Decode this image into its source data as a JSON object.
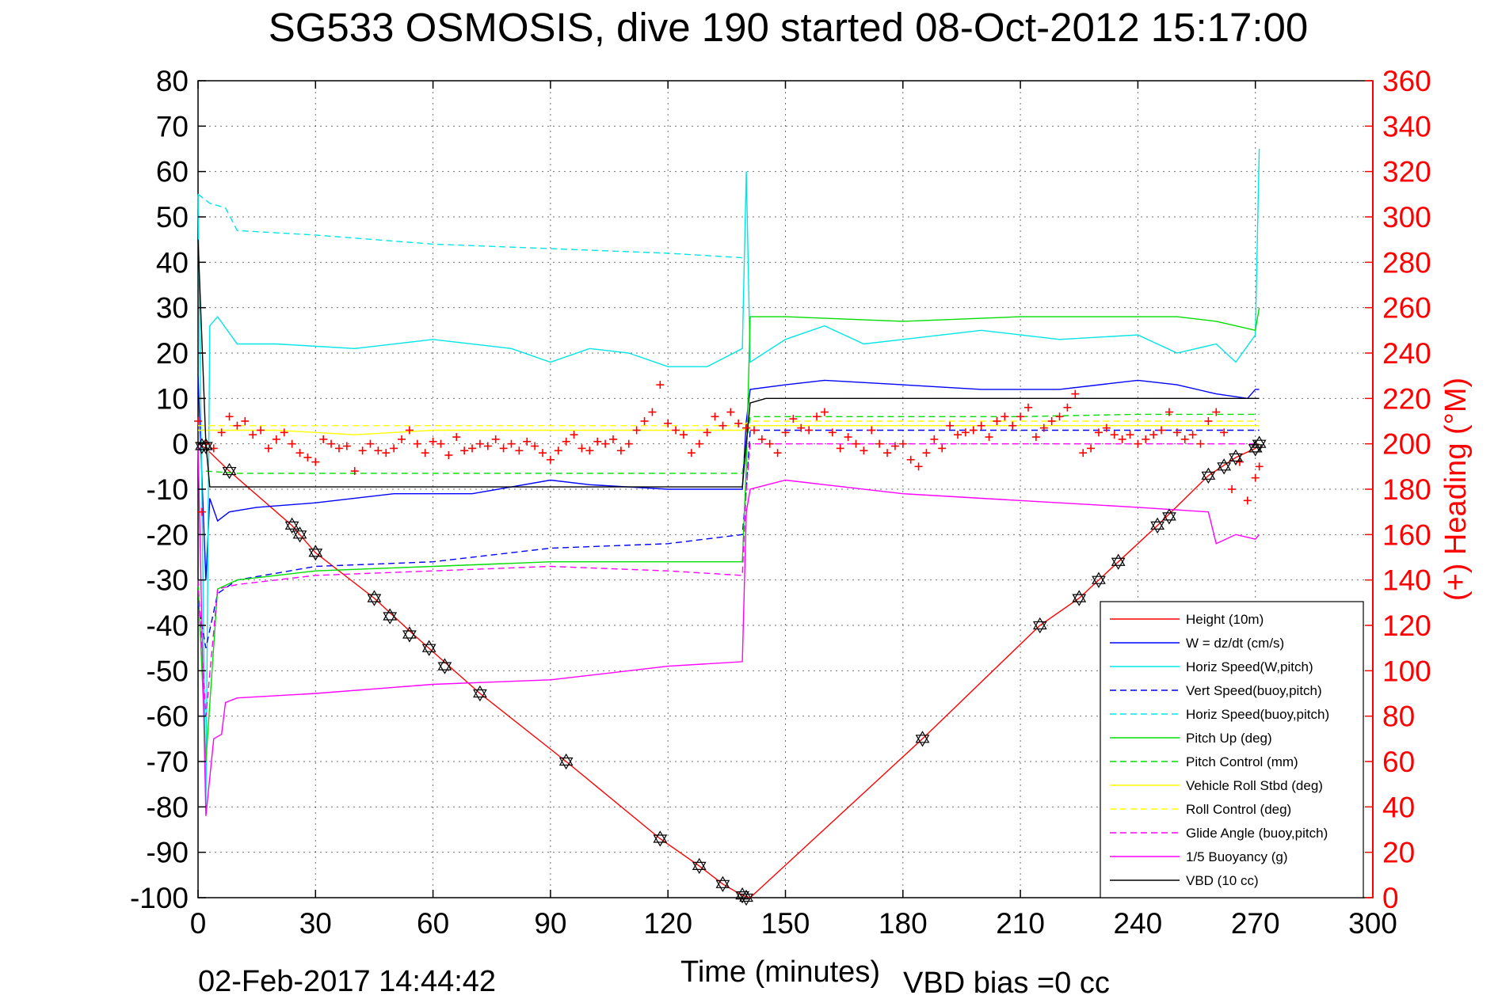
{
  "chart_data": {
    "type": "line",
    "title": "SG533 OSMOSIS, dive 190 started 08-Oct-2012 15:17:00",
    "xlabel": "Time (minutes)",
    "ylabel_right": "(+) Heading (°M)",
    "footer_date": "02-Feb-2017 14:44:42",
    "footer_bias": "VBD bias =0 cc",
    "xlim": [
      0,
      300
    ],
    "ylim": [
      -100,
      80
    ],
    "ylim_right": [
      0,
      360
    ],
    "x_ticks": [
      0,
      30,
      60,
      90,
      120,
      150,
      180,
      210,
      240,
      270,
      300
    ],
    "x_tick_labels": [
      "0",
      "30",
      "60",
      "90",
      "120",
      "150",
      "180",
      "210",
      "240",
      "270",
      "300"
    ],
    "y_ticks": [
      -100,
      -90,
      -80,
      -70,
      -60,
      -50,
      -40,
      -30,
      -20,
      -10,
      0,
      10,
      20,
      30,
      40,
      50,
      60,
      70,
      80
    ],
    "y_tick_labels": [
      "-100",
      "-90",
      "-80",
      "-70",
      "-60",
      "-50",
      "-40",
      "-30",
      "-20",
      "-10",
      "0",
      "10",
      "20",
      "30",
      "40",
      "50",
      "60",
      "70",
      "80"
    ],
    "y_right_ticks": [
      0,
      20,
      40,
      60,
      80,
      100,
      120,
      140,
      160,
      180,
      200,
      220,
      240,
      260,
      280,
      300,
      320,
      340,
      360
    ],
    "y_right_tick_labels": [
      "0",
      "20",
      "40",
      "60",
      "80",
      "100",
      "120",
      "140",
      "160",
      "180",
      "200",
      "220",
      "240",
      "260",
      "280",
      "300",
      "320",
      "340",
      "360"
    ],
    "grid": true,
    "legend_position": "bottom-right",
    "series": [
      {
        "name": "Height (10m)",
        "color": "#ff0000",
        "style": "solid",
        "x": [
          0,
          2,
          8,
          24,
          30,
          45,
          55,
          72,
          94,
          118,
          128,
          134,
          139,
          141,
          185,
          215,
          225,
          235,
          245,
          258,
          265,
          270,
          271
        ],
        "y": [
          0,
          -1,
          -6,
          -18,
          -24,
          -34,
          -42,
          -55,
          -70,
          -87,
          -93,
          -97,
          -99.5,
          -100,
          -65,
          -40,
          -34,
          -26,
          -18,
          -7,
          -3,
          -1,
          0
        ]
      },
      {
        "name": "W = dz/dt (cm/s)",
        "color": "#0000ff",
        "style": "solid",
        "x": [
          0,
          2,
          3,
          5,
          8,
          15,
          30,
          50,
          70,
          90,
          100,
          120,
          139,
          140,
          141,
          150,
          160,
          180,
          200,
          220,
          240,
          250,
          260,
          268,
          270,
          271
        ],
        "y": [
          15,
          -30,
          -12,
          -17,
          -15,
          -14,
          -13,
          -11,
          -11,
          -8,
          -9,
          -10,
          -10,
          5,
          12,
          13,
          14,
          13,
          12,
          12,
          14,
          13,
          11,
          10,
          12,
          12
        ]
      },
      {
        "name": "Horiz Speed(W,pitch)",
        "color": "#00e5e5",
        "style": "solid",
        "x": [
          0,
          2,
          3,
          5,
          10,
          20,
          40,
          60,
          80,
          90,
          100,
          110,
          120,
          130,
          139,
          140,
          141,
          150,
          160,
          170,
          180,
          200,
          220,
          240,
          250,
          260,
          265,
          270,
          271
        ],
        "y": [
          55,
          -80,
          26,
          28,
          22,
          22,
          21,
          23,
          21,
          18,
          21,
          20,
          17,
          17,
          21,
          60,
          18,
          23,
          26,
          22,
          23,
          25,
          23,
          24,
          20,
          22,
          18,
          24,
          65
        ]
      },
      {
        "name": "Vert Speed(buoy,pitch)",
        "color": "#0000ff",
        "style": "dashed",
        "x": [
          0,
          2,
          5,
          10,
          30,
          60,
          90,
          120,
          139,
          140,
          141,
          150,
          180,
          210,
          240,
          260,
          271
        ],
        "y": [
          -35,
          -45,
          -33,
          -30,
          -27,
          -26,
          -23,
          -22,
          -20,
          -10,
          3,
          3,
          3,
          3,
          3,
          3,
          3
        ]
      },
      {
        "name": "Horiz Speed(buoy,pitch)",
        "color": "#00e5e5",
        "style": "dashed",
        "x": [
          0,
          3,
          7,
          10,
          30,
          60,
          90,
          120,
          139
        ],
        "y": [
          55,
          53,
          52,
          47,
          46,
          44,
          43,
          42,
          41
        ]
      },
      {
        "name": "Pitch Up (deg)",
        "color": "#00dd00",
        "style": "solid",
        "x": [
          0,
          2,
          5,
          10,
          30,
          60,
          90,
          120,
          139,
          140,
          141,
          150,
          180,
          210,
          240,
          250,
          260,
          265,
          270,
          271
        ],
        "y": [
          -30,
          -70,
          -32,
          -30,
          -28,
          -27,
          -26,
          -26,
          -26,
          -5,
          28,
          28,
          27,
          28,
          28,
          28,
          27,
          26,
          25,
          30
        ]
      },
      {
        "name": "Pitch Control (mm)",
        "color": "#00dd00",
        "style": "dashed",
        "x": [
          2,
          10,
          60,
          120,
          139,
          140,
          141,
          180,
          210,
          240,
          271
        ],
        "y": [
          -6,
          -6.5,
          -6.5,
          -6.5,
          -6.5,
          0,
          6,
          6,
          6,
          6.5,
          6.5
        ]
      },
      {
        "name": "Vehicle Roll Stbd (deg)",
        "color": "#ffff00",
        "style": "solid",
        "x": [
          0,
          20,
          40,
          60,
          80,
          100,
          120,
          139,
          141,
          160,
          180,
          200,
          220,
          240,
          260,
          271
        ],
        "y": [
          3,
          3,
          2,
          3,
          3,
          3,
          3,
          3,
          4,
          4,
          4,
          4,
          4,
          4,
          4,
          4
        ]
      },
      {
        "name": "Roll Control (deg)",
        "color": "#ffff00",
        "style": "dashed",
        "x": [
          0,
          40,
          80,
          120,
          139,
          141,
          180,
          220,
          260,
          271
        ],
        "y": [
          4,
          4,
          4,
          4,
          4,
          5,
          5,
          5,
          5,
          5
        ]
      },
      {
        "name": "Glide Angle (buoy,pitch)",
        "color": "#ff00ff",
        "style": "dashed",
        "x": [
          0,
          2,
          5,
          10,
          30,
          60,
          90,
          120,
          139,
          140,
          141,
          180,
          210,
          240,
          271
        ],
        "y": [
          -30,
          -60,
          -32,
          -31,
          -29,
          -28,
          -27,
          -28,
          -29,
          -10,
          0,
          0,
          0,
          0,
          0
        ]
      },
      {
        "name": "1/5 Buoyancy (g)",
        "color": "#ff00ff",
        "style": "solid",
        "x": [
          0,
          2,
          4,
          6,
          7,
          10,
          30,
          60,
          90,
          120,
          139,
          140,
          141,
          150,
          160,
          180,
          200,
          220,
          240,
          258,
          260,
          265,
          270,
          271
        ],
        "y": [
          0,
          -82,
          -65,
          -64,
          -57,
          -56,
          -55,
          -53,
          -52,
          -49,
          -48,
          -15,
          -10,
          -8,
          -9,
          -11,
          -12,
          -13,
          -14,
          -15,
          -22,
          -20,
          -21,
          -20
        ]
      },
      {
        "name": "VBD (10 cc)",
        "color": "#000000",
        "style": "solid",
        "x": [
          0,
          2,
          3,
          10,
          60,
          120,
          139,
          140,
          141,
          145,
          180,
          220,
          260,
          265,
          271
        ],
        "y": [
          45,
          0,
          -9.5,
          -9.5,
          -9.5,
          -9.5,
          -9.5,
          0,
          9,
          10,
          10,
          10,
          10,
          10,
          10
        ]
      }
    ],
    "heading": {
      "name": "(+) Heading (°M)",
      "color": "#ff0000",
      "marker": "+",
      "x": [
        0,
        1,
        2,
        4,
        6,
        8,
        10,
        12,
        14,
        16,
        18,
        20,
        22,
        24,
        26,
        28,
        30,
        32,
        34,
        36,
        38,
        40,
        42,
        44,
        46,
        48,
        50,
        52,
        54,
        56,
        58,
        60,
        62,
        64,
        66,
        68,
        70,
        72,
        74,
        76,
        78,
        80,
        82,
        84,
        86,
        88,
        90,
        92,
        94,
        96,
        98,
        100,
        102,
        104,
        106,
        108,
        110,
        112,
        114,
        116,
        118,
        120,
        122,
        124,
        126,
        128,
        130,
        132,
        134,
        136,
        138,
        140,
        142,
        144,
        146,
        148,
        150,
        152,
        154,
        156,
        158,
        160,
        162,
        164,
        166,
        168,
        170,
        172,
        174,
        176,
        178,
        180,
        182,
        184,
        186,
        188,
        190,
        192,
        194,
        196,
        198,
        200,
        202,
        204,
        206,
        208,
        210,
        212,
        214,
        216,
        218,
        220,
        222,
        224,
        226,
        228,
        230,
        232,
        234,
        236,
        238,
        240,
        242,
        244,
        246,
        248,
        250,
        252,
        254,
        256,
        258,
        260,
        262,
        264,
        266,
        268,
        270,
        271
      ],
      "y": [
        210,
        170,
        200,
        198,
        205,
        212,
        208,
        210,
        204,
        206,
        198,
        202,
        205,
        200,
        196,
        194,
        192,
        202,
        200,
        198,
        199,
        188,
        197,
        200,
        197,
        196,
        198,
        202,
        206,
        200,
        196,
        201,
        200,
        195,
        203,
        197,
        198,
        200,
        199,
        202,
        198,
        200,
        197,
        201,
        199,
        196,
        193,
        197,
        201,
        204,
        198,
        197,
        201,
        200,
        202,
        197,
        200,
        206,
        210,
        214,
        226,
        209,
        206,
        204,
        196,
        200,
        205,
        212,
        208,
        214,
        209,
        207,
        206,
        202,
        200,
        196,
        205,
        211,
        207,
        206,
        212,
        214,
        205,
        198,
        203,
        200,
        197,
        206,
        200,
        196,
        199,
        200,
        193,
        190,
        196,
        202,
        198,
        208,
        204,
        205,
        206,
        208,
        203,
        210,
        212,
        208,
        212,
        216,
        203,
        207,
        210,
        212,
        216,
        222,
        196,
        198,
        205,
        207,
        204,
        202,
        204,
        200,
        202,
        204,
        206,
        214,
        205,
        202,
        204,
        200,
        210,
        214,
        205,
        180,
        192,
        175,
        185,
        190
      ]
    },
    "markers": {
      "name": "Height (10m) samples",
      "color": "#000000",
      "marker": "hexagram",
      "x": [
        1,
        2,
        8,
        24,
        26,
        30,
        45,
        49,
        54,
        59,
        63,
        72,
        94,
        118,
        128,
        134,
        139,
        140,
        185,
        215,
        225,
        230,
        235,
        245,
        248,
        258,
        262,
        265,
        270,
        271
      ],
      "y": [
        -0.5,
        -0.5,
        -6,
        -18,
        -20,
        -24,
        -34,
        -38,
        -42,
        -45,
        -49,
        -55,
        -70,
        -87,
        -93,
        -97,
        -99.5,
        -100,
        -65,
        -40,
        -34,
        -30,
        -26,
        -18,
        -16,
        -7,
        -5,
        -3,
        -1,
        0
      ]
    }
  }
}
